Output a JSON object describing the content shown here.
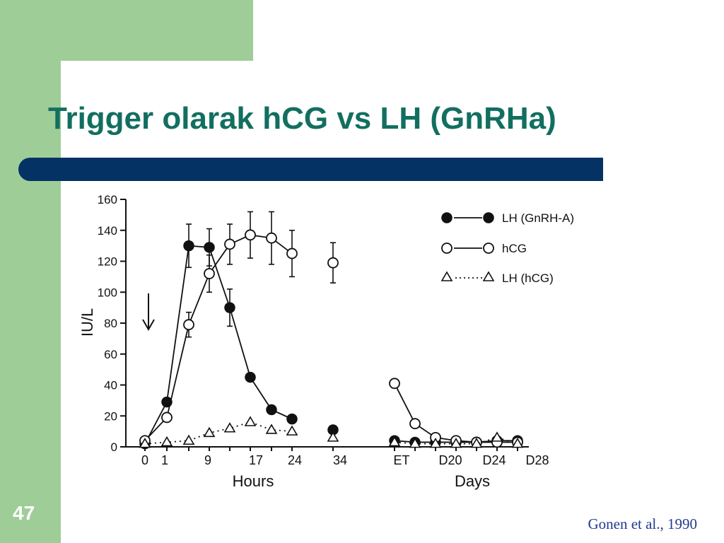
{
  "slide": {
    "title": "Trigger olarak hCG vs LH (GnRHa)",
    "page_number": "47",
    "citation": "Gonen et al., 1990",
    "colors": {
      "title": "#126f60",
      "bar": "#043264",
      "sidebar": "#9fcd97",
      "citation": "#223a8f"
    }
  },
  "chart_data": {
    "type": "line",
    "ylabel": "IU/L",
    "ylim": [
      0,
      160
    ],
    "yticks": [
      "0",
      "20",
      "40",
      "60",
      "80",
      "100",
      "120",
      "140",
      "160"
    ],
    "xlabels": {
      "hours": "Hours",
      "days": "Days"
    },
    "x_categories": [
      "0",
      "1",
      "9",
      "17",
      "24",
      "34",
      "ET",
      "D20",
      "D24",
      "D28"
    ],
    "annotation": "trigger arrow at time 0",
    "legend": {
      "placement": "top-right",
      "entries": [
        "LH (GnRH-A)",
        "hCG",
        "LH (hCG)"
      ]
    },
    "series": [
      {
        "name": "LH (GnRH-A)",
        "marker": "filled-circle",
        "line": "solid",
        "segments": [
          [
            {
              "x": 0,
              "y": 2
            },
            {
              "x": 1,
              "y": 29
            },
            {
              "x": 4.5,
              "y": 130,
              "err": 14
            },
            {
              "x": 9,
              "y": 129,
              "err": 12
            },
            {
              "x": 13,
              "y": 90,
              "err": 12
            },
            {
              "x": 17,
              "y": 45
            },
            {
              "x": 20.5,
              "y": 24
            },
            {
              "x": 24,
              "y": 18
            }
          ],
          [
            {
              "x": 34,
              "y": 11
            }
          ],
          [
            {
              "x": "ET",
              "y": 4
            },
            {
              "x": "ET+",
              "y": 3
            },
            {
              "x": "D20-",
              "y": 3
            },
            {
              "x": "D20",
              "y": 3
            },
            {
              "x": "D22",
              "y": 3
            },
            {
              "x": "D24",
              "y": 4
            },
            {
              "x": "D26",
              "y": 4
            }
          ]
        ]
      },
      {
        "name": "hCG",
        "marker": "open-circle",
        "line": "solid",
        "segments": [
          [
            {
              "x": 0,
              "y": 4
            },
            {
              "x": 1,
              "y": 19
            },
            {
              "x": 4.5,
              "y": 79,
              "err": 8
            },
            {
              "x": 9,
              "y": 112,
              "err": 12
            },
            {
              "x": 13,
              "y": 131,
              "err": 13
            },
            {
              "x": 17,
              "y": 137,
              "err": 15
            },
            {
              "x": 20.5,
              "y": 135,
              "err": 17
            },
            {
              "x": 24,
              "y": 125,
              "err": 15
            }
          ],
          [
            {
              "x": 34,
              "y": 119,
              "err": 13
            }
          ],
          [
            {
              "x": "ET",
              "y": 41
            },
            {
              "x": "ET+",
              "y": 15
            },
            {
              "x": "D20-",
              "y": 6
            },
            {
              "x": "D20",
              "y": 4
            },
            {
              "x": "D22",
              "y": 3
            },
            {
              "x": "D24",
              "y": 3
            },
            {
              "x": "D26",
              "y": 3
            }
          ]
        ]
      },
      {
        "name": "LH (hCG)",
        "marker": "open-triangle",
        "line": "dotted",
        "segments": [
          [
            {
              "x": 0,
              "y": 2
            },
            {
              "x": 1,
              "y": 3
            },
            {
              "x": 4.5,
              "y": 4
            },
            {
              "x": 9,
              "y": 9
            },
            {
              "x": 13,
              "y": 12
            },
            {
              "x": 17,
              "y": 16
            },
            {
              "x": 20.5,
              "y": 11
            },
            {
              "x": 24,
              "y": 10
            }
          ],
          [
            {
              "x": 34,
              "y": 6
            }
          ],
          [
            {
              "x": "ET",
              "y": 3
            },
            {
              "x": "ET+",
              "y": 2
            },
            {
              "x": "D20-",
              "y": 2
            },
            {
              "x": "D20",
              "y": 2
            },
            {
              "x": "D22",
              "y": 2
            },
            {
              "x": "D24",
              "y": 6
            },
            {
              "x": "D26",
              "y": 2
            }
          ]
        ]
      }
    ]
  }
}
